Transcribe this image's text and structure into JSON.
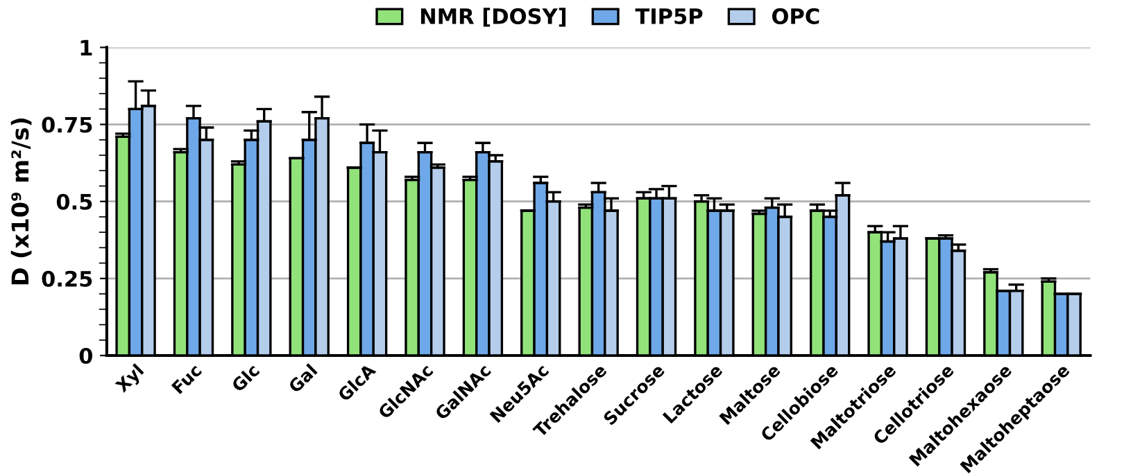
{
  "chart_data": {
    "type": "bar",
    "ylabel": "D (x10⁹ m²/s)",
    "categories": [
      "Xyl",
      "Fuc",
      "Glc",
      "Gal",
      "GlcA",
      "GlcNAc",
      "GalNAc",
      "Neu5Ac",
      "Trehalose",
      "Sucrose",
      "Lactose",
      "Maltose",
      "Cellobiose",
      "Maltotriose",
      "Cellotriose",
      "Maltohexaose",
      "Maltoheptaose"
    ],
    "series": [
      {
        "name": "NMR [DOSY]",
        "color": "#92e27a",
        "values": [
          0.71,
          0.66,
          0.62,
          0.64,
          0.61,
          0.57,
          0.57,
          0.47,
          0.48,
          0.51,
          0.5,
          0.46,
          0.47,
          0.4,
          0.38,
          0.27,
          0.24
        ],
        "errors": [
          0.01,
          0.01,
          0.01,
          null,
          null,
          0.01,
          0.01,
          null,
          0.01,
          0.02,
          0.02,
          0.01,
          0.02,
          0.02,
          null,
          0.01,
          0.01
        ]
      },
      {
        "name": "TIP5P",
        "color": "#6ea8e8",
        "values": [
          0.8,
          0.77,
          0.7,
          0.7,
          0.69,
          0.66,
          0.66,
          0.56,
          0.53,
          0.51,
          0.47,
          0.48,
          0.45,
          0.37,
          0.38,
          0.21,
          0.2
        ],
        "errors": [
          0.09,
          0.04,
          0.03,
          0.09,
          0.06,
          0.03,
          0.03,
          0.02,
          0.03,
          0.03,
          0.04,
          0.03,
          0.02,
          0.03,
          0.01,
          null,
          null
        ]
      },
      {
        "name": "OPC",
        "color": "#b4cdeb",
        "values": [
          0.81,
          0.7,
          0.76,
          0.77,
          0.66,
          0.61,
          0.63,
          0.5,
          0.47,
          0.51,
          0.47,
          0.45,
          0.52,
          0.38,
          0.34,
          0.21,
          0.2
        ],
        "errors": [
          0.05,
          0.04,
          0.04,
          0.07,
          0.07,
          0.01,
          0.02,
          0.03,
          0.04,
          0.04,
          0.02,
          0.04,
          0.04,
          0.04,
          0.02,
          0.02,
          null
        ]
      }
    ],
    "ylim": [
      0,
      1
    ],
    "yticks": [
      0,
      0.25,
      0.5,
      0.75,
      1
    ],
    "grid": "y",
    "legend": "top"
  }
}
